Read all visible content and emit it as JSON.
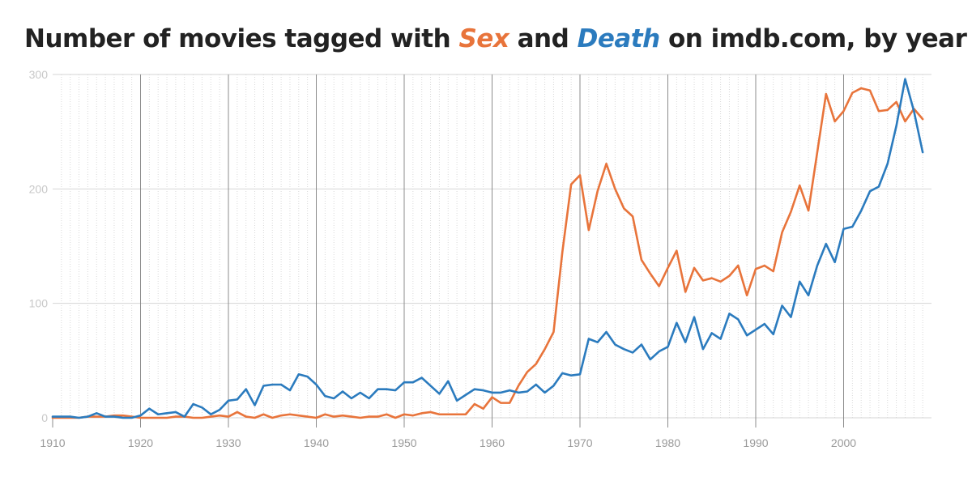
{
  "title": {
    "prefix": "Number of movies tagged with ",
    "term1": "Sex",
    "middle": " and ",
    "term2": "Death",
    "suffix": " on imdb.com, by year"
  },
  "chart_data": {
    "type": "line",
    "title": "Number of movies tagged with Sex and Death on imdb.com, by year",
    "xlim": [
      1910,
      2010
    ],
    "ylim": [
      0,
      300
    ],
    "x_ticks": [
      1910,
      1920,
      1930,
      1940,
      1950,
      1960,
      1970,
      1980,
      1990,
      2000
    ],
    "y_ticks": [
      0,
      100,
      200,
      300
    ],
    "grid": true,
    "legend": "none (series named in title)",
    "x": [
      1910,
      1911,
      1912,
      1913,
      1914,
      1915,
      1916,
      1917,
      1918,
      1919,
      1920,
      1921,
      1922,
      1923,
      1924,
      1925,
      1926,
      1927,
      1928,
      1929,
      1930,
      1931,
      1932,
      1933,
      1934,
      1935,
      1936,
      1937,
      1938,
      1939,
      1940,
      1941,
      1942,
      1943,
      1944,
      1945,
      1946,
      1947,
      1948,
      1949,
      1950,
      1951,
      1952,
      1953,
      1954,
      1955,
      1956,
      1957,
      1958,
      1959,
      1960,
      1961,
      1962,
      1963,
      1964,
      1965,
      1966,
      1967,
      1968,
      1969,
      1970,
      1971,
      1972,
      1973,
      1974,
      1975,
      1976,
      1977,
      1978,
      1979,
      1980,
      1981,
      1982,
      1983,
      1984,
      1985,
      1986,
      1987,
      1988,
      1989,
      1990,
      1991,
      1992,
      1993,
      1994,
      1995,
      1996,
      1997,
      1998,
      1999,
      2000,
      2001,
      2002,
      2003,
      2004,
      2005,
      2006,
      2007,
      2008,
      2009,
      2010
    ],
    "series": [
      {
        "name": "Sex",
        "color": "#E8743B",
        "values": [
          0,
          0,
          0,
          0,
          1,
          1,
          1,
          2,
          2,
          1,
          0,
          0,
          0,
          0,
          1,
          1,
          0,
          0,
          1,
          2,
          1,
          5,
          1,
          0,
          3,
          0,
          2,
          3,
          2,
          1,
          0,
          3,
          1,
          2,
          1,
          0,
          1,
          1,
          3,
          0,
          3,
          2,
          4,
          5,
          3,
          3,
          3,
          3,
          12,
          8,
          18,
          13,
          13,
          28,
          40,
          47,
          60,
          75,
          145,
          204,
          212,
          164,
          198,
          222,
          200,
          183,
          176,
          138,
          126,
          115,
          131,
          146,
          110,
          131,
          120,
          122,
          119,
          124,
          133,
          107,
          130,
          133,
          128,
          162,
          180,
          203,
          181,
          232,
          283,
          259,
          268,
          284,
          288,
          286,
          268,
          269,
          276,
          259,
          270,
          261,
          null
        ]
      },
      {
        "name": "Death",
        "color": "#2B7BBE",
        "values": [
          1,
          1,
          1,
          0,
          1,
          4,
          1,
          1,
          0,
          0,
          2,
          8,
          3,
          4,
          5,
          1,
          12,
          9,
          3,
          7,
          15,
          16,
          25,
          11,
          28,
          29,
          29,
          24,
          38,
          36,
          29,
          19,
          17,
          23,
          17,
          22,
          17,
          25,
          25,
          24,
          31,
          31,
          35,
          28,
          21,
          32,
          15,
          20,
          25,
          24,
          22,
          22,
          24,
          22,
          23,
          29,
          22,
          28,
          39,
          37,
          38,
          69,
          66,
          75,
          64,
          60,
          57,
          64,
          51,
          58,
          62,
          83,
          66,
          88,
          60,
          74,
          69,
          91,
          86,
          72,
          77,
          82,
          73,
          98,
          88,
          119,
          107,
          133,
          152,
          136,
          165,
          167,
          181,
          198,
          202,
          222,
          255,
          296,
          268,
          232,
          null
        ]
      }
    ]
  }
}
